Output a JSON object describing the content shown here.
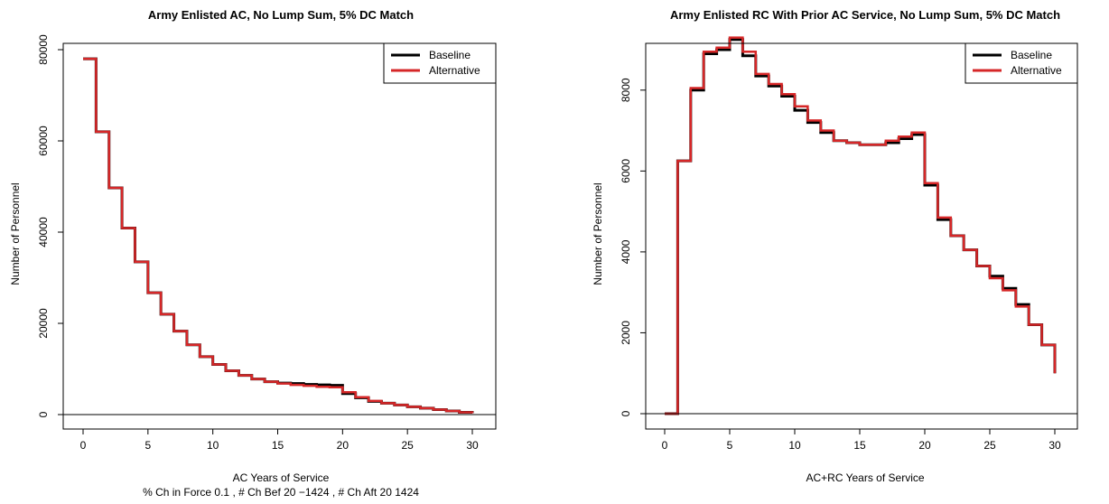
{
  "chart_data": [
    {
      "type": "line",
      "title": "Army Enlisted AC, No Lump Sum, 5% DC Match",
      "xlabel": "AC Years of Service",
      "subtitle": "% Ch in Force 0.1 , # Ch Bef 20 −1424 , # Ch Aft 20 1424",
      "ylabel": "Number of Personnel",
      "xlim": [
        0,
        30
      ],
      "ylim": [
        0,
        80000
      ],
      "xticks": [
        "0",
        "5",
        "10",
        "15",
        "20",
        "25",
        "30"
      ],
      "yticks": [
        "0",
        "20000",
        "40000",
        "60000",
        "80000"
      ],
      "legend": {
        "position": "top-right",
        "entries": [
          "Baseline",
          "Alternative"
        ]
      },
      "x": [
        0,
        1,
        2,
        3,
        4,
        5,
        6,
        7,
        8,
        9,
        10,
        11,
        12,
        13,
        14,
        15,
        16,
        17,
        18,
        19,
        20,
        21,
        22,
        23,
        24,
        25,
        26,
        27,
        28,
        29,
        30
      ],
      "series": [
        {
          "name": "Baseline",
          "color": "#000000",
          "values": [
            78000,
            62000,
            49700,
            40900,
            33500,
            26700,
            22000,
            18300,
            15300,
            12700,
            11000,
            9600,
            8600,
            7800,
            7200,
            6900,
            6800,
            6600,
            6500,
            6400,
            4600,
            3700,
            2900,
            2500,
            2100,
            1700,
            1400,
            1100,
            800,
            500,
            300
          ]
        },
        {
          "name": "Alternative",
          "color": "#d62728",
          "values": [
            78000,
            62000,
            49700,
            40900,
            33500,
            26700,
            22000,
            18300,
            15300,
            12700,
            11000,
            9600,
            8600,
            7800,
            7200,
            6800,
            6500,
            6300,
            6100,
            6000,
            4900,
            3800,
            3000,
            2500,
            2100,
            1700,
            1400,
            1100,
            800,
            500,
            300
          ]
        }
      ]
    },
    {
      "type": "line",
      "title": "Army Enlisted RC With Prior AC Service, No Lump Sum, 5% DC Match",
      "xlabel": "AC+RC Years of Service",
      "ylabel": "Number of Personnel",
      "xlim": [
        0,
        30
      ],
      "ylim": [
        0,
        9000
      ],
      "xticks": [
        "0",
        "5",
        "10",
        "15",
        "20",
        "25",
        "30"
      ],
      "yticks": [
        "0",
        "2000",
        "4000",
        "6000",
        "8000"
      ],
      "legend": {
        "position": "top-right",
        "entries": [
          "Baseline",
          "Alternative"
        ]
      },
      "x": [
        0,
        1,
        2,
        3,
        4,
        5,
        6,
        7,
        8,
        9,
        10,
        11,
        12,
        13,
        14,
        15,
        16,
        17,
        18,
        19,
        20,
        21,
        22,
        23,
        24,
        25,
        26,
        27,
        28,
        29,
        30
      ],
      "series": [
        {
          "name": "Baseline",
          "color": "#000000",
          "values": [
            0,
            6250,
            8000,
            8900,
            9000,
            9250,
            8850,
            8350,
            8100,
            7850,
            7500,
            7200,
            6950,
            6750,
            6700,
            6650,
            6650,
            6700,
            6800,
            6900,
            5650,
            4800,
            4400,
            4050,
            3650,
            3400,
            3100,
            2700,
            2200,
            1700,
            1000
          ]
        },
        {
          "name": "Alternative",
          "color": "#d62728",
          "values": [
            0,
            6250,
            8050,
            8950,
            9050,
            9300,
            8950,
            8400,
            8150,
            7900,
            7600,
            7250,
            7000,
            6750,
            6700,
            6650,
            6650,
            6750,
            6850,
            6950,
            5700,
            4850,
            4400,
            4050,
            3650,
            3350,
            3050,
            2650,
            2200,
            1700,
            1000
          ]
        }
      ]
    }
  ]
}
